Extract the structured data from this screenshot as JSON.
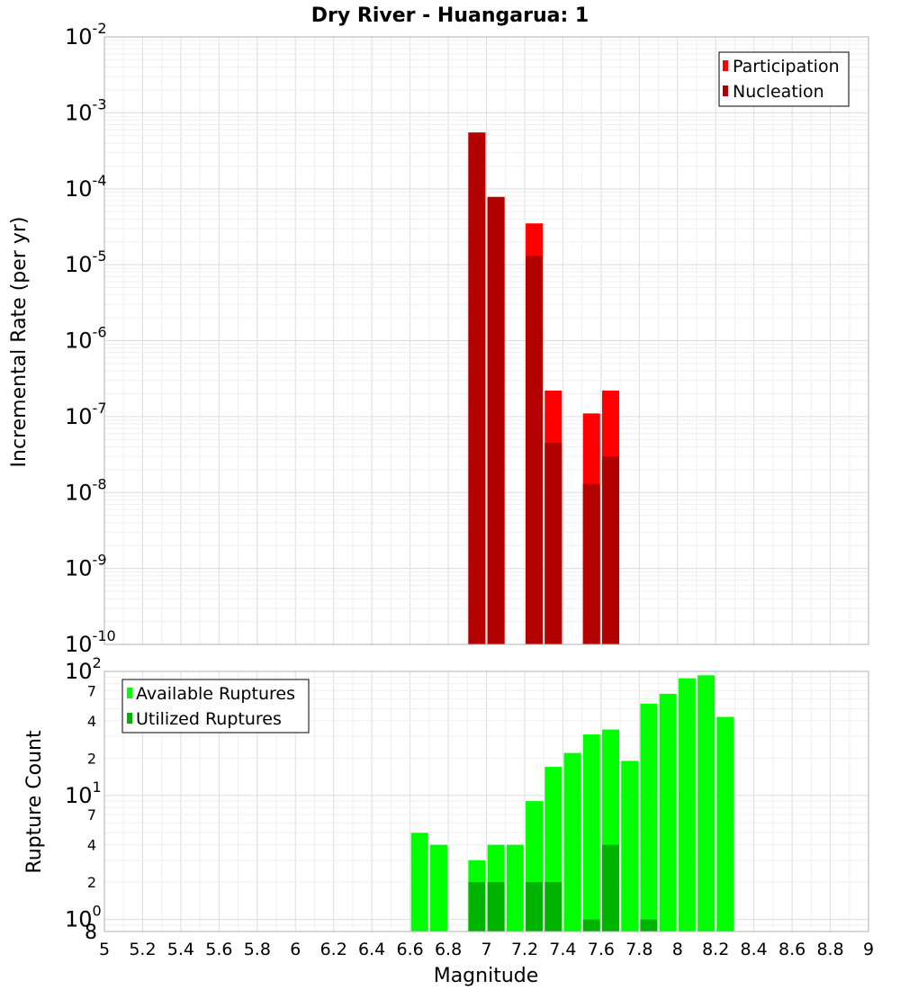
{
  "chart_data": [
    {
      "type": "bar",
      "title": "Dry River - Huangarua: 1",
      "xlabel": "",
      "ylabel": "Incremental Rate (per yr)",
      "yscale": "log",
      "xlim": [
        5,
        9
      ],
      "ylim": [
        1e-10,
        0.01
      ],
      "grid": true,
      "legend_position": "top-right",
      "y_tick_labels": [
        {
          "base": "10",
          "exp": "-10"
        },
        {
          "base": "10",
          "exp": "-9"
        },
        {
          "base": "10",
          "exp": "-8"
        },
        {
          "base": "10",
          "exp": "-7"
        },
        {
          "base": "10",
          "exp": "-6"
        },
        {
          "base": "10",
          "exp": "-5"
        },
        {
          "base": "10",
          "exp": "-4"
        },
        {
          "base": "10",
          "exp": "-3"
        },
        {
          "base": "10",
          "exp": "-2"
        }
      ],
      "series": [
        {
          "name": "Participation",
          "color": "#ff0000",
          "x": [
            6.95,
            7.05,
            7.25,
            7.35,
            7.55,
            7.65
          ],
          "values": [
            0.00055,
            7.8e-05,
            3.5e-05,
            2.2e-07,
            1.1e-07,
            2.2e-07
          ]
        },
        {
          "name": "Nucleation",
          "color": "#b30000",
          "x": [
            6.95,
            7.05,
            7.25,
            7.35,
            7.55,
            7.65
          ],
          "values": [
            0.00055,
            7.8e-05,
            1.3e-05,
            4.5e-08,
            1.3e-08,
            3e-08
          ]
        }
      ]
    },
    {
      "type": "bar",
      "title": "",
      "xlabel": "Magnitude",
      "ylabel": "Rupture Count",
      "yscale": "log",
      "xlim": [
        5,
        9
      ],
      "ylim": [
        0.8,
        100
      ],
      "grid": true,
      "legend_position": "top-left",
      "x_tick_labels": [
        "5",
        "5.2",
        "5.4",
        "5.6",
        "5.8",
        "6",
        "6.2",
        "6.4",
        "6.6",
        "6.8",
        "7",
        "7.2",
        "7.4",
        "7.6",
        "7.8",
        "8",
        "8.2",
        "8.4",
        "8.6",
        "8.8",
        "9"
      ],
      "y_major_labels": [
        {
          "value": 1,
          "base": "10",
          "exp": "0"
        },
        {
          "value": 10,
          "base": "10",
          "exp": "1"
        },
        {
          "value": 100,
          "base": "10",
          "exp": "2"
        }
      ],
      "y_minor_labels": [
        {
          "value": 0.8,
          "label": "8"
        },
        {
          "value": 2,
          "label": "2"
        },
        {
          "value": 4,
          "label": "4"
        },
        {
          "value": 7,
          "label": "7"
        },
        {
          "value": 20,
          "label": "2"
        },
        {
          "value": 40,
          "label": "4"
        },
        {
          "value": 70,
          "label": "7"
        }
      ],
      "series": [
        {
          "name": "Available Ruptures",
          "color": "#00ff00",
          "x": [
            6.65,
            6.75,
            6.95,
            7.05,
            7.15,
            7.25,
            7.35,
            7.45,
            7.55,
            7.65,
            7.75,
            7.85,
            7.95,
            8.05,
            8.15,
            8.25
          ],
          "values": [
            5,
            4,
            3,
            4,
            4,
            9,
            17,
            22,
            31,
            34,
            19,
            55,
            66,
            88,
            93,
            43
          ]
        },
        {
          "name": "Utilized Ruptures",
          "color": "#00b300",
          "x": [
            6.95,
            7.05,
            7.25,
            7.35,
            7.55,
            7.65,
            7.85
          ],
          "values": [
            2,
            2,
            2,
            2,
            1,
            4,
            1
          ]
        }
      ]
    }
  ]
}
